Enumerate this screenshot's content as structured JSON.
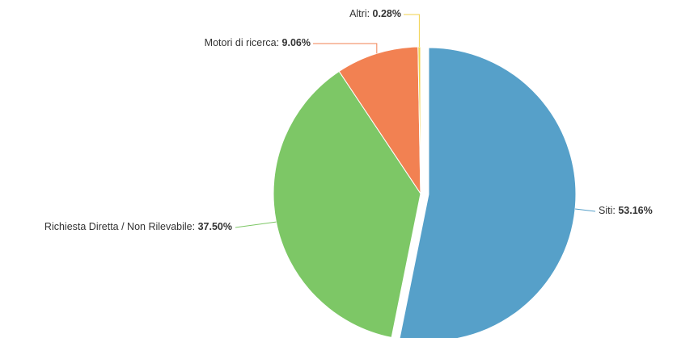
{
  "chart_data": {
    "type": "pie",
    "categories": [
      "Siti",
      "Richiesta Diretta / Non Rilevabile",
      "Motori di ricerca",
      "Altri"
    ],
    "values": [
      53.16,
      37.5,
      9.06,
      0.28
    ],
    "value_labels": [
      "53.16%",
      "37.50%",
      "9.06%",
      "0.28%"
    ],
    "colors": [
      "#56a0c9",
      "#7dc766",
      "#f28152",
      "#f1d24a"
    ]
  }
}
